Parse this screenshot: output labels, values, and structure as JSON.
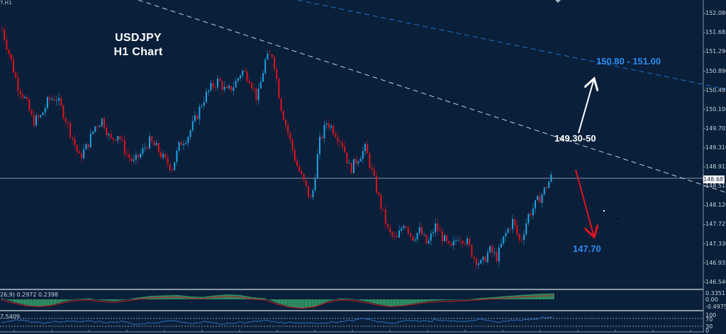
{
  "header": {
    "symbol_label": "7,H1",
    "title_line1": "USDJPY",
    "title_line2": "H1 Chart"
  },
  "price_axis": {
    "ticks": [
      "152.080",
      "151.685",
      "151.290",
      "150.890",
      "150.495",
      "150.100",
      "149.705",
      "149.310",
      "148.915",
      "148.515",
      "148.120",
      "147.725",
      "147.330",
      "146.935",
      "146.540"
    ],
    "current_price": "148.681"
  },
  "annotations": {
    "target_high": "150.80 - 151.00",
    "pivot": "149.30-50",
    "target_low": "147.70"
  },
  "macd": {
    "label": "26,9) 0.2972 0.2398",
    "axis": [
      "0.3351",
      "0.00",
      "-0.4975"
    ]
  },
  "rsi": {
    "label": "7.5409",
    "axis": [
      "100",
      "70",
      "30",
      "0"
    ]
  },
  "colors": {
    "background": "#0a1f3a",
    "bull": "#1fa3e0",
    "bear": "#e0141c",
    "trendline_white": "#c8ced6",
    "trendline_blue": "#1a73d0",
    "annotation_blue": "#2a8ef0",
    "macd_hist": "#3cb371",
    "macd_signal": "#b22222",
    "rsi_line": "#2a6fc0"
  },
  "chart_data": {
    "type": "candlestick",
    "title": "USDJPY H1 Chart",
    "timeframe": "H1",
    "ylim": [
      146.54,
      152.08
    ],
    "y_ticks": [
      152.08,
      151.685,
      151.29,
      150.89,
      150.495,
      150.1,
      149.705,
      149.31,
      148.915,
      148.515,
      148.12,
      147.725,
      147.33,
      146.935,
      146.54
    ],
    "current_price": 148.681,
    "horizontal_line": 148.681,
    "path_close": [
      151.75,
      151.2,
      150.6,
      150.3,
      149.85,
      149.95,
      150.3,
      150.35,
      150.0,
      149.55,
      149.1,
      149.35,
      149.75,
      149.9,
      149.45,
      149.6,
      149.2,
      149.0,
      149.2,
      149.45,
      149.3,
      149.05,
      148.9,
      149.4,
      149.55,
      149.9,
      150.3,
      150.55,
      150.7,
      150.45,
      150.6,
      150.9,
      150.75,
      150.3,
      151.1,
      151.25,
      150.2,
      149.6,
      149.0,
      148.6,
      148.2,
      149.4,
      149.85,
      149.65,
      149.4,
      148.85,
      149.1,
      149.3,
      148.7,
      148.1,
      147.55,
      147.4,
      147.8,
      147.45,
      147.6,
      147.3,
      147.7,
      147.45,
      147.2,
      147.5,
      147.4,
      147.05,
      146.9,
      147.2,
      147.05,
      147.5,
      147.8,
      147.35,
      147.9,
      148.15,
      148.4,
      148.7
    ],
    "trendlines": [
      {
        "name": "descending resistance (white dashed)",
        "from": [
          195,
          0
        ],
        "to": [
          1024,
          272
        ]
      },
      {
        "name": "upper channel (blue dashed)",
        "from": [
          420,
          0
        ],
        "to": [
          1024,
          126
        ]
      }
    ],
    "arrows": [
      {
        "direction": "up",
        "label": "150.80 - 151.00",
        "from_price": 149.4,
        "to_price": 150.9
      },
      {
        "direction": "down",
        "label": "147.70",
        "from_price": 149.1,
        "to_price": 147.85
      }
    ],
    "indicators": [
      {
        "name": "MACD(12,26,9)",
        "values": [
          0.2972,
          0.2398
        ],
        "axis": [
          0.3351,
          0.0,
          -0.4975
        ]
      },
      {
        "name": "RSI",
        "levels": [
          100,
          70,
          30,
          0
        ],
        "last_label": "7.5409"
      }
    ]
  }
}
